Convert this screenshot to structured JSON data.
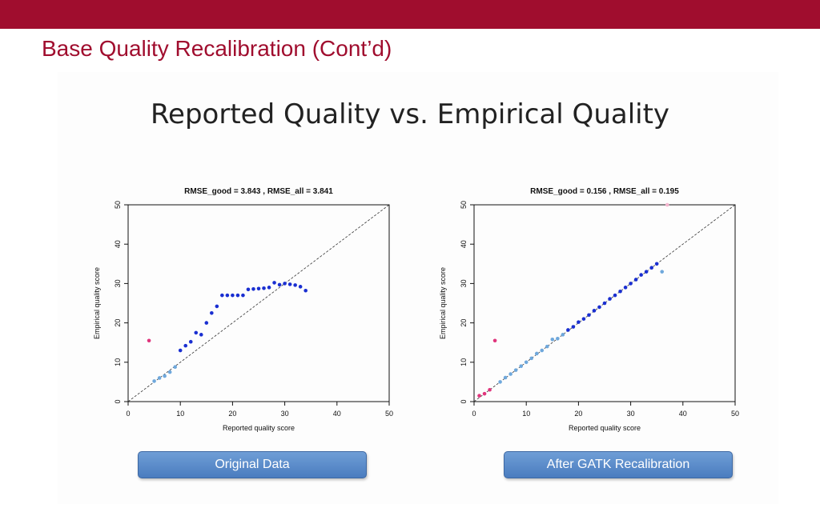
{
  "slide": {
    "title": "Base Quality Recalibration (Cont’d)",
    "heading": "Reported Quality vs. Empirical Quality",
    "accent_color": "#a00d2e"
  },
  "buttons": {
    "left_label": "Original Data",
    "right_label": "After GATK Recalibration"
  },
  "chart_data": [
    {
      "type": "scatter",
      "title": "RMSE_good = 3.843 , RMSE_all = 3.841",
      "xlabel": "Reported quality score",
      "ylabel": "Empirical quality score",
      "xlim": [
        0,
        50
      ],
      "ylim": [
        0,
        50
      ],
      "xticks": [
        "0",
        "10",
        "20",
        "30",
        "40",
        "50"
      ],
      "yticks": [
        "0",
        "10",
        "20",
        "30",
        "40",
        "50"
      ],
      "reference_line": "y = x (dashed)",
      "series": [
        {
          "color": "#1a2fd1",
          "points": [
            [
              10,
              13
            ],
            [
              11,
              14.2
            ],
            [
              12,
              15.2
            ],
            [
              13,
              17.5
            ],
            [
              14,
              17
            ],
            [
              15,
              20
            ],
            [
              16,
              22.5
            ],
            [
              17,
              24.2
            ],
            [
              18,
              27
            ],
            [
              19,
              27
            ],
            [
              20,
              27
            ],
            [
              21,
              27
            ],
            [
              22,
              27
            ],
            [
              23,
              28.5
            ],
            [
              24,
              28.6
            ],
            [
              25,
              28.7
            ],
            [
              26,
              28.8
            ],
            [
              27,
              29
            ],
            [
              28,
              30.2
            ],
            [
              29,
              29.7
            ],
            [
              30,
              30
            ],
            [
              31,
              29.8
            ],
            [
              32,
              29.6
            ],
            [
              33,
              29.2
            ],
            [
              34,
              28.2
            ]
          ]
        },
        {
          "color": "#6fa8dc",
          "points": [
            [
              5,
              5.2
            ],
            [
              6,
              6
            ],
            [
              7,
              6.5
            ],
            [
              8,
              7.5
            ],
            [
              9,
              8.8
            ]
          ]
        },
        {
          "color": "#e0357c",
          "points": [
            [
              4,
              15.5
            ]
          ]
        }
      ]
    },
    {
      "type": "scatter",
      "title": "RMSE_good = 0.156 , RMSE_all = 0.195",
      "xlabel": "Reported quality score",
      "ylabel": "Empirical quality score",
      "xlim": [
        0,
        50
      ],
      "ylim": [
        0,
        50
      ],
      "xticks": [
        "0",
        "10",
        "20",
        "30",
        "40",
        "50"
      ],
      "yticks": [
        "0",
        "10",
        "20",
        "30",
        "40",
        "50"
      ],
      "reference_line": "y = x (dashed)",
      "series": [
        {
          "color": "#1a2fd1",
          "points": [
            [
              18,
              18.2
            ],
            [
              19,
              19
            ],
            [
              20,
              20.2
            ],
            [
              21,
              21
            ],
            [
              22,
              22
            ],
            [
              23,
              23.1
            ],
            [
              24,
              24
            ],
            [
              25,
              25
            ],
            [
              26,
              26.1
            ],
            [
              27,
              27
            ],
            [
              28,
              28
            ],
            [
              29,
              29
            ],
            [
              30,
              30
            ],
            [
              31,
              31
            ],
            [
              32,
              32.2
            ],
            [
              33,
              33
            ],
            [
              34,
              34
            ],
            [
              35,
              35
            ]
          ]
        },
        {
          "color": "#6fa8dc",
          "points": [
            [
              5,
              5
            ],
            [
              6,
              6.1
            ],
            [
              7,
              7
            ],
            [
              8,
              8
            ],
            [
              9,
              9
            ],
            [
              10,
              10
            ],
            [
              11,
              11
            ],
            [
              12,
              12.2
            ],
            [
              13,
              13
            ],
            [
              14,
              14
            ],
            [
              15,
              15.8
            ],
            [
              16,
              16
            ],
            [
              17,
              17
            ],
            [
              36,
              33
            ]
          ]
        },
        {
          "color": "#e0357c",
          "points": [
            [
              1,
              1.5
            ],
            [
              2,
              2
            ],
            [
              3,
              3
            ],
            [
              4,
              15.5
            ]
          ]
        },
        {
          "color": "#f4b6cf",
          "points": [
            [
              37,
              50
            ]
          ]
        }
      ]
    }
  ]
}
